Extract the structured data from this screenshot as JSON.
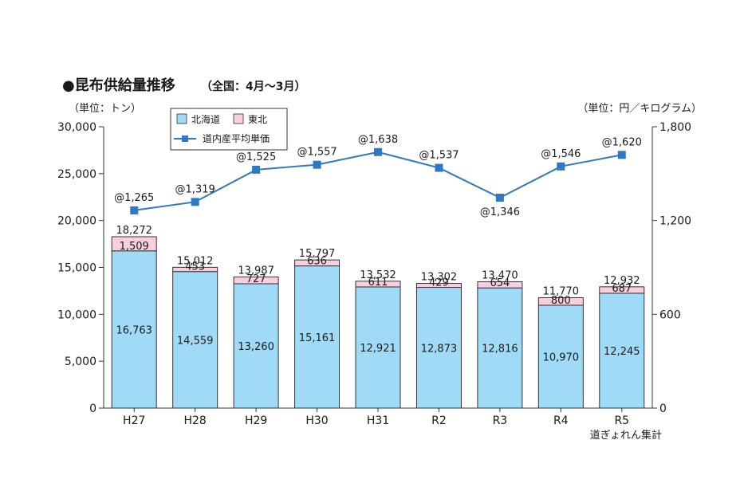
{
  "chart_data": {
    "type": "bar",
    "title": "●昆布供給量推移",
    "subtitle": "（全国：4月〜3月）",
    "ylabel_left": "（単位：トン）",
    "ylabel_right": "（単位：円／キログラム）",
    "source": "道ぎょれん集計",
    "categories": [
      "H27",
      "H28",
      "H29",
      "H30",
      "H31",
      "R2",
      "R3",
      "R4",
      "R5"
    ],
    "ylim_left": [
      0,
      30000
    ],
    "yticks_left": [
      "0",
      "5,000",
      "10,000",
      "15,000",
      "20,000",
      "25,000",
      "30,000"
    ],
    "ylim_right": [
      0,
      1800
    ],
    "yticks_right": [
      "0",
      "600",
      "1,200",
      "1,800"
    ],
    "series": [
      {
        "name": "北海道",
        "color": "#9fdaf6",
        "values": [
          16763,
          14559,
          13260,
          15161,
          12921,
          12873,
          12816,
          10970,
          12245
        ],
        "labels": [
          "16,763",
          "14,559",
          "13,260",
          "15,161",
          "12,921",
          "12,873",
          "12,816",
          "10,970",
          "12,245"
        ]
      },
      {
        "name": "東北",
        "color": "#f8cfe0",
        "values": [
          1509,
          453,
          727,
          636,
          611,
          429,
          654,
          800,
          687
        ],
        "labels": [
          "1,509",
          "453",
          "727",
          "636",
          "611",
          "429",
          "654",
          "800",
          "687"
        ]
      }
    ],
    "totals": [
      "18,272",
      "15,012",
      "13,987",
      "15,797",
      "13,532",
      "13,302",
      "13,470",
      "11,770",
      "12,932"
    ],
    "line": {
      "name": "道内産平均単価",
      "color": "#2f78c4",
      "values": [
        1265,
        1319,
        1525,
        1557,
        1638,
        1537,
        1346,
        1546,
        1620
      ],
      "labels": [
        "@1,265",
        "@1,319",
        "@1,525",
        "@1,557",
        "@1,638",
        "@1,537",
        "@1,346",
        "@1,546",
        "@1,620"
      ]
    },
    "legend_position": "top-left"
  }
}
